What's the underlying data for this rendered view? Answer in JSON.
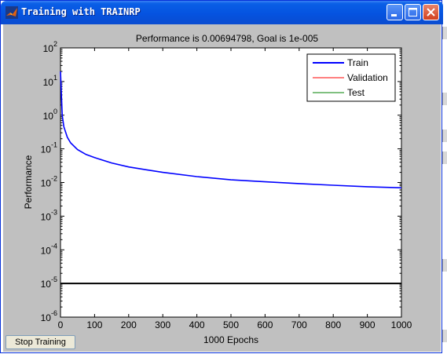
{
  "window": {
    "title": "Training with TRAINRP",
    "title_color": "#ffffff",
    "titlebar_color": "#0a5fe6",
    "close_color": "#d2401e"
  },
  "icons": [
    "matlab-logo-icon",
    "minimize-icon",
    "maximize-icon",
    "close-icon"
  ],
  "button": {
    "stop_label": "Stop Training"
  },
  "chart_data": {
    "type": "line",
    "title": "Performance is 0.00694798, Goal is 1e-005",
    "xlabel": "1000 Epochs",
    "ylabel": "Performance",
    "yscale": "log",
    "xlim": [
      0,
      1000
    ],
    "ylim": [
      1e-06,
      100
    ],
    "x_ticks": [
      "0",
      "100",
      "200",
      "300",
      "400",
      "500",
      "600",
      "700",
      "800",
      "900",
      "1000"
    ],
    "y_ticks": [
      {
        "base": "10",
        "exp": "2"
      },
      {
        "base": "10",
        "exp": "1"
      },
      {
        "base": "10",
        "exp": "0"
      },
      {
        "base": "10",
        "exp": "-1"
      },
      {
        "base": "10",
        "exp": "-2"
      },
      {
        "base": "10",
        "exp": "-3"
      },
      {
        "base": "10",
        "exp": "-4"
      },
      {
        "base": "10",
        "exp": "-5"
      },
      {
        "base": "10",
        "exp": "-6"
      }
    ],
    "legend_position": "top-right",
    "series": [
      {
        "name": "Train",
        "color": "#0000ff",
        "x": [
          0,
          5,
          10,
          20,
          30,
          50,
          75,
          100,
          150,
          200,
          250,
          300,
          400,
          500,
          600,
          700,
          800,
          900,
          1000
        ],
        "y": [
          20,
          1.0,
          0.45,
          0.22,
          0.15,
          0.095,
          0.068,
          0.055,
          0.038,
          0.029,
          0.024,
          0.02,
          0.015,
          0.012,
          0.0105,
          0.0093,
          0.0083,
          0.0075,
          0.00694798
        ]
      },
      {
        "name": "Validation",
        "color": "#ff0000",
        "x": [],
        "y": []
      },
      {
        "name": "Test",
        "color": "#008000",
        "x": [],
        "y": []
      },
      {
        "name": "Goal",
        "color": "#000000",
        "x": [
          0,
          1000
        ],
        "y": [
          1e-05,
          1e-05
        ]
      }
    ]
  }
}
